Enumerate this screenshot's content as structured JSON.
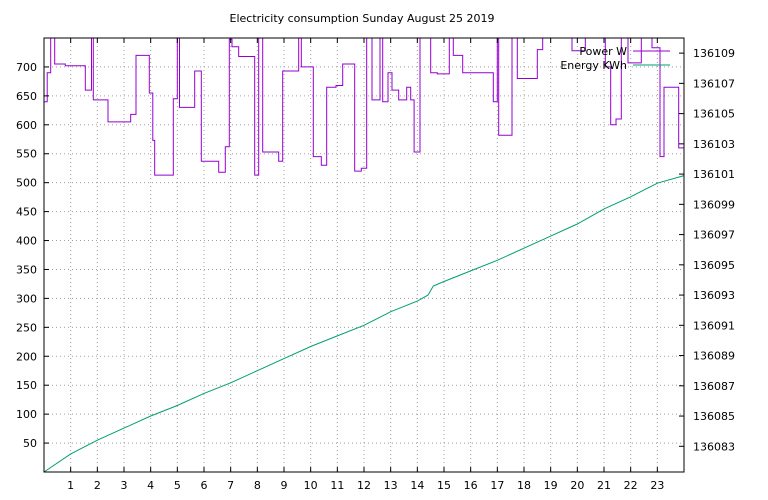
{
  "chart_data": {
    "type": "line",
    "title": "Electricity consumption Sunday August 25 2019",
    "xlabel": "",
    "ylabel": "",
    "y2label": "",
    "xlim": [
      0,
      24
    ],
    "x_ticks": [
      1,
      2,
      3,
      4,
      5,
      6,
      7,
      8,
      9,
      10,
      11,
      12,
      13,
      14,
      15,
      16,
      17,
      18,
      19,
      20,
      21,
      22,
      23
    ],
    "ylim": [
      0,
      750
    ],
    "y_ticks": [
      50,
      100,
      150,
      200,
      250,
      300,
      350,
      400,
      450,
      500,
      550,
      600,
      650,
      700
    ],
    "y2lim": [
      136081.3,
      136110
    ],
    "y2_ticks": [
      136083,
      136085,
      136087,
      136089,
      136091,
      136093,
      136095,
      136097,
      136099,
      136101,
      136103,
      136105,
      136107,
      136109
    ],
    "grid": true,
    "legend_position": "top-right",
    "series": [
      {
        "name": "Power W",
        "axis": "left",
        "color": "#9400d3",
        "step": true,
        "points": [
          [
            0.0,
            640
          ],
          [
            0.12,
            690
          ],
          [
            0.25,
            750
          ],
          [
            0.4,
            705
          ],
          [
            0.8,
            702
          ],
          [
            1.55,
            660
          ],
          [
            1.78,
            750
          ],
          [
            1.85,
            643
          ],
          [
            2.4,
            605
          ],
          [
            3.0,
            605
          ],
          [
            3.25,
            618
          ],
          [
            3.45,
            720
          ],
          [
            3.95,
            655
          ],
          [
            4.08,
            573
          ],
          [
            4.15,
            513
          ],
          [
            4.35,
            513
          ],
          [
            4.85,
            645
          ],
          [
            5.0,
            750
          ],
          [
            5.08,
            630
          ],
          [
            5.3,
            630
          ],
          [
            5.6,
            630
          ],
          [
            5.65,
            693
          ],
          [
            5.9,
            537
          ],
          [
            6.2,
            537
          ],
          [
            6.55,
            518
          ],
          [
            6.8,
            562
          ],
          [
            6.95,
            748
          ],
          [
            7.05,
            735
          ],
          [
            7.3,
            718
          ],
          [
            7.5,
            718
          ],
          [
            7.82,
            718
          ],
          [
            7.9,
            513
          ],
          [
            8.05,
            750
          ],
          [
            8.2,
            553
          ],
          [
            8.5,
            553
          ],
          [
            8.8,
            537
          ],
          [
            8.95,
            693
          ],
          [
            9.15,
            693
          ],
          [
            9.55,
            750
          ],
          [
            9.65,
            700
          ],
          [
            10.1,
            545
          ],
          [
            10.4,
            530
          ],
          [
            10.6,
            665
          ],
          [
            10.95,
            668
          ],
          [
            11.2,
            705
          ],
          [
            11.45,
            705
          ],
          [
            11.65,
            520
          ],
          [
            11.9,
            525
          ],
          [
            12.1,
            750
          ],
          [
            12.3,
            643
          ],
          [
            12.6,
            750
          ],
          [
            12.7,
            640
          ],
          [
            12.9,
            690
          ],
          [
            13.05,
            660
          ],
          [
            13.3,
            643
          ],
          [
            13.6,
            665
          ],
          [
            13.75,
            643
          ],
          [
            13.88,
            553
          ],
          [
            14.1,
            750
          ],
          [
            14.5,
            690
          ],
          [
            14.75,
            688
          ],
          [
            15.2,
            750
          ],
          [
            15.35,
            720
          ],
          [
            15.7,
            690
          ],
          [
            16.2,
            690
          ],
          [
            16.6,
            690
          ],
          [
            16.85,
            640
          ],
          [
            17.0,
            750
          ],
          [
            17.05,
            582
          ],
          [
            17.4,
            582
          ],
          [
            17.55,
            750
          ],
          [
            17.75,
            680
          ],
          [
            18.5,
            730
          ],
          [
            18.7,
            750
          ],
          [
            19.8,
            728
          ],
          [
            20.3,
            750
          ],
          [
            21.05,
            700
          ],
          [
            21.25,
            600
          ],
          [
            21.45,
            610
          ],
          [
            21.65,
            750
          ],
          [
            21.9,
            707
          ],
          [
            22.4,
            750
          ],
          [
            22.8,
            733
          ],
          [
            23.1,
            545
          ],
          [
            23.25,
            665
          ],
          [
            23.6,
            665
          ],
          [
            23.8,
            560
          ],
          [
            24.0,
            680
          ]
        ]
      },
      {
        "name": "Energy KWh",
        "axis": "right",
        "color": "#009e73",
        "step": false,
        "points": [
          [
            0,
            136081.3
          ],
          [
            1,
            136082.5
          ],
          [
            2,
            136083.4
          ],
          [
            3,
            136084.2
          ],
          [
            4,
            136085.0
          ],
          [
            5,
            136085.7
          ],
          [
            6,
            136086.5
          ],
          [
            7,
            136087.2
          ],
          [
            8,
            136088.0
          ],
          [
            9,
            136088.8
          ],
          [
            10,
            136089.6
          ],
          [
            11,
            136090.3
          ],
          [
            12,
            136091.0
          ],
          [
            13,
            136091.9
          ],
          [
            14,
            136092.6
          ],
          [
            14.4,
            136093.0
          ],
          [
            14.6,
            136093.6
          ],
          [
            15,
            136093.9
          ],
          [
            16,
            136094.6
          ],
          [
            17,
            136095.3
          ],
          [
            18,
            136096.1
          ],
          [
            19,
            136096.9
          ],
          [
            20,
            136097.7
          ],
          [
            21,
            136098.7
          ],
          [
            22,
            136099.5
          ],
          [
            23,
            136100.4
          ],
          [
            24,
            136100.9
          ]
        ]
      }
    ]
  }
}
